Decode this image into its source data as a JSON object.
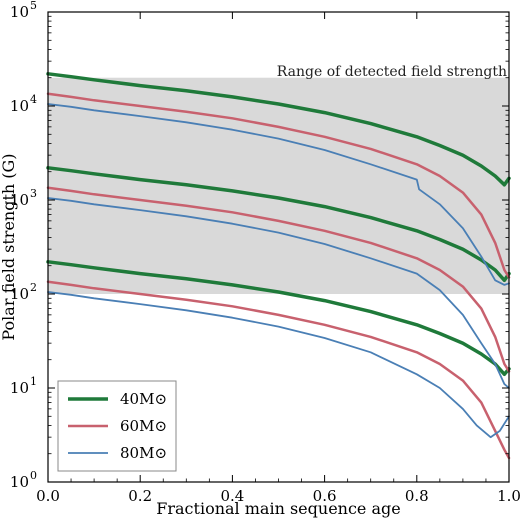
{
  "chart_data": {
    "type": "line",
    "xlabel": "Fractional main sequence age",
    "ylabel": "Polar field strength (G)",
    "xlim": [
      0.0,
      1.0
    ],
    "ylim": [
      1,
      100000
    ],
    "yscale": "log",
    "grid": false,
    "legend_placement": "bottom-left",
    "x_ticks": [
      "0.0",
      "0.2",
      "0.4",
      "0.6",
      "0.8",
      "1.0"
    ],
    "y_ticks": [
      {
        "mantissa": "10",
        "exp": "0"
      },
      {
        "mantissa": "10",
        "exp": "1"
      },
      {
        "mantissa": "10",
        "exp": "2"
      },
      {
        "mantissa": "10",
        "exp": "3"
      },
      {
        "mantissa": "10",
        "exp": "4"
      },
      {
        "mantissa": "10",
        "exp": "5"
      }
    ],
    "shaded_band": {
      "label": "Range of detected field strength",
      "y_range": [
        100,
        20000
      ],
      "color": "#d9d9d9"
    },
    "series": [
      {
        "name": "40M⊙",
        "mass": "40",
        "color": "#1f7a3a",
        "width": 3.5,
        "curves": [
          {
            "x": [
              0,
              0.05,
              0.1,
              0.2,
              0.3,
              0.4,
              0.5,
              0.6,
              0.7,
              0.8,
              0.85,
              0.9,
              0.94,
              0.97,
              0.99,
              1.0
            ],
            "y": [
              22000,
              20500,
              19000,
              16500,
              14500,
              12500,
              10500,
              8500,
              6500,
              4700,
              3800,
              3000,
              2300,
              1800,
              1450,
              1700
            ]
          },
          {
            "x": [
              0,
              0.05,
              0.1,
              0.2,
              0.3,
              0.4,
              0.5,
              0.6,
              0.7,
              0.8,
              0.85,
              0.9,
              0.94,
              0.97,
              0.99,
              1.0
            ],
            "y": [
              2200,
              2050,
              1900,
              1650,
              1450,
              1250,
              1050,
              850,
              650,
              470,
              380,
              300,
              230,
              180,
              140,
              165
            ]
          },
          {
            "x": [
              0,
              0.05,
              0.1,
              0.2,
              0.3,
              0.4,
              0.5,
              0.6,
              0.7,
              0.8,
              0.85,
              0.9,
              0.94,
              0.97,
              0.99,
              1.0
            ],
            "y": [
              220,
              205,
              190,
              165,
              145,
              125,
              105,
              85,
              65,
              47,
              38,
              30,
              23,
              18,
              14,
              16
            ]
          }
        ]
      },
      {
        "name": "60M⊙",
        "mass": "60",
        "color": "#c8616e",
        "width": 2.5,
        "curves": [
          {
            "x": [
              0,
              0.05,
              0.1,
              0.2,
              0.3,
              0.4,
              0.5,
              0.6,
              0.7,
              0.8,
              0.85,
              0.9,
              0.94,
              0.97,
              0.99,
              1.0
            ],
            "y": [
              13500,
              12500,
              11500,
              10000,
              8700,
              7400,
              6000,
              4700,
              3500,
              2400,
              1800,
              1200,
              700,
              350,
              180,
              150
            ]
          },
          {
            "x": [
              0,
              0.05,
              0.1,
              0.2,
              0.3,
              0.4,
              0.5,
              0.6,
              0.7,
              0.8,
              0.85,
              0.9,
              0.94,
              0.97,
              0.99,
              1.0
            ],
            "y": [
              1350,
              1250,
              1150,
              1000,
              870,
              740,
              600,
              470,
              350,
              240,
              180,
              120,
              70,
              35,
              18,
              15
            ]
          },
          {
            "x": [
              0,
              0.05,
              0.1,
              0.2,
              0.3,
              0.4,
              0.5,
              0.6,
              0.7,
              0.8,
              0.85,
              0.9,
              0.94,
              0.97,
              0.99,
              1.0
            ],
            "y": [
              135,
              125,
              115,
              100,
              87,
              74,
              60,
              47,
              35,
              24,
              18,
              12,
              7,
              3.5,
              2.2,
              1.8
            ]
          }
        ]
      },
      {
        "name": "80M⊙",
        "mass": "80",
        "color": "#4a7fb5",
        "width": 1.8,
        "curves": [
          {
            "x": [
              0,
              0.05,
              0.1,
              0.2,
              0.3,
              0.4,
              0.5,
              0.6,
              0.7,
              0.8,
              0.805,
              0.85,
              0.9,
              0.94,
              0.97,
              0.99,
              1.0
            ],
            "y": [
              10500,
              9800,
              9000,
              7800,
              6700,
              5600,
              4500,
              3400,
              2400,
              1650,
              1300,
              900,
              500,
              250,
              140,
              125,
              130
            ]
          },
          {
            "x": [
              0,
              0.05,
              0.1,
              0.2,
              0.3,
              0.4,
              0.5,
              0.6,
              0.7,
              0.8,
              0.85,
              0.9,
              0.94,
              0.97,
              0.99,
              1.0
            ],
            "y": [
              1050,
              980,
              900,
              780,
              670,
              560,
              450,
              340,
              240,
              165,
              110,
              60,
              30,
              18,
              11,
              10
            ]
          },
          {
            "x": [
              0,
              0.05,
              0.1,
              0.2,
              0.3,
              0.4,
              0.5,
              0.6,
              0.7,
              0.8,
              0.85,
              0.9,
              0.93,
              0.96,
              0.98,
              1.0
            ],
            "y": [
              105,
              98,
              90,
              78,
              67,
              56,
              45,
              34,
              24,
              14,
              10,
              6,
              4,
              3,
              3.5,
              5
            ]
          }
        ]
      }
    ]
  }
}
